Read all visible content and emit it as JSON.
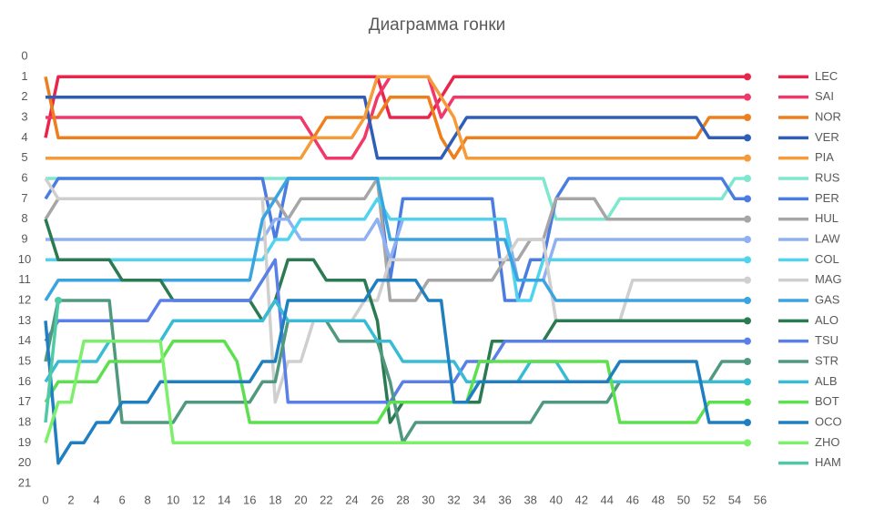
{
  "chart_data": {
    "type": "line",
    "title": "Диаграмма гонки",
    "x": [
      0,
      1,
      2,
      3,
      4,
      5,
      6,
      7,
      8,
      9,
      10,
      11,
      12,
      13,
      14,
      15,
      16,
      17,
      18,
      19,
      20,
      21,
      22,
      23,
      24,
      25,
      26,
      27,
      28,
      29,
      30,
      31,
      32,
      33,
      34,
      35,
      36,
      37,
      38,
      39,
      40,
      41,
      42,
      43,
      44,
      45,
      46,
      47,
      48,
      49,
      50,
      51,
      52,
      53,
      54,
      55
    ],
    "xlim": [
      0,
      56
    ],
    "xticks": [
      0,
      2,
      4,
      6,
      8,
      10,
      12,
      14,
      16,
      18,
      20,
      22,
      24,
      26,
      28,
      30,
      32,
      34,
      36,
      38,
      40,
      42,
      44,
      46,
      48,
      50,
      52,
      54,
      56
    ],
    "ylim": [
      21,
      0
    ],
    "yticks": [
      0,
      1,
      2,
      3,
      4,
      5,
      6,
      7,
      8,
      9,
      10,
      11,
      12,
      13,
      14,
      15,
      16,
      17,
      18,
      19,
      20,
      21
    ],
    "series": [
      {
        "name": "LEC",
        "color": "#e8264b",
        "values": [
          4,
          1,
          1,
          1,
          1,
          1,
          1,
          1,
          1,
          1,
          1,
          1,
          1,
          1,
          1,
          1,
          1,
          1,
          1,
          1,
          1,
          1,
          1,
          1,
          1,
          1,
          1,
          3,
          3,
          3,
          3,
          2,
          1,
          1,
          1,
          1,
          1,
          1,
          1,
          1,
          1,
          1,
          1,
          1,
          1,
          1,
          1,
          1,
          1,
          1,
          1,
          1,
          1,
          1,
          1,
          1
        ]
      },
      {
        "name": "SAI",
        "color": "#f0386a",
        "values": [
          3,
          3,
          3,
          3,
          3,
          3,
          3,
          3,
          3,
          3,
          3,
          3,
          3,
          3,
          3,
          3,
          3,
          3,
          3,
          3,
          3,
          4,
          5,
          5,
          5,
          4,
          2,
          1,
          1,
          1,
          1,
          3,
          2,
          2,
          2,
          2,
          2,
          2,
          2,
          2,
          2,
          2,
          2,
          2,
          2,
          2,
          2,
          2,
          2,
          2,
          2,
          2,
          2,
          2,
          2,
          2
        ]
      },
      {
        "name": "NOR",
        "color": "#ee7f1d",
        "values": [
          1,
          4,
          4,
          4,
          4,
          4,
          4,
          4,
          4,
          4,
          4,
          4,
          4,
          4,
          4,
          4,
          4,
          4,
          4,
          4,
          4,
          4,
          3,
          3,
          3,
          3,
          3,
          2,
          2,
          2,
          2,
          4,
          5,
          4,
          4,
          4,
          4,
          4,
          4,
          4,
          4,
          4,
          4,
          4,
          4,
          4,
          4,
          4,
          4,
          4,
          4,
          4,
          3,
          3,
          3,
          3
        ]
      },
      {
        "name": "VER",
        "color": "#2f5eb8",
        "values": [
          2,
          2,
          2,
          2,
          2,
          2,
          2,
          2,
          2,
          2,
          2,
          2,
          2,
          2,
          2,
          2,
          2,
          2,
          2,
          2,
          2,
          2,
          2,
          2,
          2,
          2,
          5,
          5,
          5,
          5,
          5,
          5,
          4,
          3,
          3,
          3,
          3,
          3,
          3,
          3,
          3,
          3,
          3,
          3,
          3,
          3,
          3,
          3,
          3,
          3,
          3,
          3,
          4,
          4,
          4,
          4
        ]
      },
      {
        "name": "PIA",
        "color": "#f59b3a",
        "values": [
          5,
          5,
          5,
          5,
          5,
          5,
          5,
          5,
          5,
          5,
          5,
          5,
          5,
          5,
          5,
          5,
          5,
          5,
          5,
          5,
          5,
          4,
          4,
          4,
          4,
          3,
          1,
          1,
          1,
          1,
          1,
          2,
          3,
          5,
          5,
          5,
          5,
          5,
          5,
          5,
          5,
          5,
          5,
          5,
          5,
          5,
          5,
          5,
          5,
          5,
          5,
          5,
          5,
          5,
          5,
          5
        ]
      },
      {
        "name": "RUS",
        "color": "#7de8cf",
        "values": [
          6,
          6,
          6,
          6,
          6,
          6,
          6,
          6,
          6,
          6,
          6,
          6,
          6,
          6,
          6,
          6,
          6,
          6,
          6,
          6,
          6,
          6,
          6,
          6,
          6,
          6,
          6,
          6,
          6,
          6,
          6,
          6,
          6,
          6,
          6,
          6,
          6,
          6,
          6,
          6,
          8,
          8,
          8,
          8,
          8,
          7,
          7,
          7,
          7,
          7,
          7,
          7,
          7,
          7,
          6,
          6
        ]
      },
      {
        "name": "PER",
        "color": "#4b7de0",
        "values": [
          7,
          6,
          6,
          6,
          6,
          6,
          6,
          6,
          6,
          6,
          6,
          6,
          6,
          6,
          6,
          6,
          6,
          6,
          9,
          6,
          6,
          6,
          6,
          6,
          6,
          6,
          6,
          11,
          7,
          7,
          7,
          7,
          7,
          7,
          7,
          7,
          12,
          12,
          10,
          10,
          7,
          6,
          6,
          6,
          6,
          6,
          6,
          6,
          6,
          6,
          6,
          6,
          6,
          6,
          7,
          7
        ]
      },
      {
        "name": "HUL",
        "color": "#a6a6a6",
        "values": [
          8,
          7,
          7,
          7,
          7,
          7,
          7,
          7,
          7,
          7,
          7,
          7,
          7,
          7,
          7,
          7,
          7,
          7,
          7,
          8,
          7,
          7,
          7,
          7,
          7,
          7,
          6,
          12,
          12,
          12,
          11,
          11,
          11,
          11,
          11,
          11,
          10,
          10,
          9,
          9,
          7,
          7,
          7,
          7,
          8,
          8,
          8,
          8,
          8,
          8,
          8,
          8,
          8,
          8,
          8,
          8
        ]
      },
      {
        "name": "LAW",
        "color": "#8fb0f2",
        "values": [
          9,
          9,
          9,
          9,
          9,
          9,
          9,
          9,
          9,
          9,
          9,
          9,
          9,
          9,
          9,
          9,
          9,
          9,
          8,
          8,
          9,
          9,
          9,
          9,
          9,
          9,
          8,
          10,
          8,
          8,
          8,
          8,
          8,
          8,
          8,
          8,
          8,
          11,
          11,
          11,
          9,
          9,
          9,
          9,
          9,
          9,
          9,
          9,
          9,
          9,
          9,
          9,
          9,
          9,
          9,
          9
        ]
      },
      {
        "name": "COL",
        "color": "#4fd3ef",
        "values": [
          10,
          10,
          10,
          10,
          10,
          10,
          10,
          10,
          10,
          10,
          10,
          10,
          10,
          10,
          10,
          10,
          10,
          10,
          9,
          9,
          8,
          8,
          8,
          8,
          8,
          8,
          7,
          8,
          8,
          8,
          8,
          8,
          8,
          8,
          8,
          8,
          8,
          12,
          12,
          10,
          10,
          10,
          10,
          10,
          10,
          10,
          10,
          10,
          10,
          10,
          10,
          10,
          10,
          10,
          10,
          10
        ]
      },
      {
        "name": "MAG",
        "color": "#cfcfcf",
        "values": [
          6,
          7,
          7,
          7,
          7,
          7,
          7,
          7,
          7,
          7,
          7,
          7,
          7,
          7,
          7,
          7,
          7,
          7,
          17,
          15,
          15,
          13,
          13,
          13,
          13,
          12,
          12,
          10,
          10,
          10,
          10,
          10,
          10,
          10,
          10,
          10,
          10,
          9,
          9,
          9,
          13,
          13,
          13,
          13,
          13,
          13,
          11,
          11,
          11,
          11,
          11,
          11,
          11,
          11,
          11,
          11
        ]
      },
      {
        "name": "GAS",
        "color": "#3aa4e0",
        "values": [
          12,
          11,
          11,
          11,
          11,
          11,
          11,
          11,
          11,
          11,
          11,
          11,
          11,
          11,
          11,
          11,
          11,
          8,
          7,
          6,
          6,
          6,
          6,
          6,
          6,
          6,
          6,
          9,
          9,
          9,
          9,
          9,
          9,
          9,
          9,
          9,
          9,
          11,
          11,
          11,
          12,
          12,
          12,
          12,
          12,
          12,
          12,
          12,
          12,
          12,
          12,
          12,
          12,
          12,
          12,
          12
        ]
      },
      {
        "name": "ALO",
        "color": "#2a7a52",
        "values": [
          8,
          10,
          10,
          10,
          10,
          10,
          11,
          11,
          11,
          11,
          12,
          12,
          12,
          12,
          12,
          12,
          12,
          13,
          12,
          10,
          10,
          10,
          11,
          11,
          11,
          11,
          13,
          18,
          17,
          17,
          17,
          17,
          17,
          17,
          17,
          14,
          14,
          14,
          14,
          14,
          13,
          13,
          13,
          13,
          13,
          13,
          13,
          13,
          13,
          13,
          13,
          13,
          13,
          13,
          13,
          13
        ]
      },
      {
        "name": "TSU",
        "color": "#5a7fe8",
        "values": [
          14,
          13,
          13,
          13,
          13,
          13,
          13,
          13,
          13,
          12,
          12,
          12,
          12,
          12,
          12,
          12,
          12,
          11,
          10,
          17,
          17,
          17,
          17,
          17,
          17,
          17,
          17,
          17,
          16,
          16,
          16,
          16,
          16,
          15,
          15,
          15,
          14,
          14,
          14,
          14,
          14,
          14,
          14,
          14,
          14,
          14,
          14,
          14,
          14,
          14,
          14,
          14,
          14,
          14,
          14,
          14
        ]
      },
      {
        "name": "STR",
        "color": "#4f9a7e",
        "values": [
          15,
          12,
          12,
          12,
          12,
          12,
          18,
          18,
          18,
          18,
          18,
          17,
          17,
          17,
          17,
          17,
          17,
          16,
          16,
          13,
          13,
          13,
          13,
          14,
          14,
          14,
          14,
          16,
          19,
          18,
          18,
          18,
          18,
          18,
          18,
          18,
          18,
          18,
          18,
          17,
          17,
          17,
          17,
          17,
          17,
          16,
          16,
          16,
          16,
          16,
          16,
          16,
          16,
          15,
          15,
          15
        ]
      },
      {
        "name": "ALB",
        "color": "#38bcd6",
        "values": [
          16,
          15,
          15,
          15,
          15,
          14,
          14,
          14,
          14,
          14,
          13,
          13,
          13,
          13,
          13,
          13,
          13,
          13,
          12,
          13,
          13,
          13,
          13,
          13,
          13,
          13,
          14,
          14,
          15,
          15,
          15,
          15,
          15,
          16,
          16,
          16,
          16,
          16,
          15,
          15,
          15,
          16,
          16,
          16,
          16,
          16,
          16,
          16,
          16,
          16,
          16,
          16,
          16,
          16,
          16,
          16
        ]
      },
      {
        "name": "BOT",
        "color": "#5ce04f",
        "values": [
          17,
          16,
          16,
          16,
          16,
          15,
          15,
          15,
          15,
          15,
          14,
          14,
          14,
          14,
          14,
          15,
          18,
          18,
          18,
          18,
          18,
          18,
          18,
          18,
          18,
          18,
          18,
          17,
          17,
          17,
          17,
          17,
          17,
          17,
          15,
          15,
          15,
          15,
          15,
          15,
          15,
          15,
          15,
          15,
          15,
          18,
          18,
          18,
          18,
          18,
          18,
          18,
          17,
          17,
          17,
          17
        ]
      },
      {
        "name": "OCO",
        "color": "#1f7fc0",
        "values": [
          13,
          20,
          19,
          19,
          18,
          18,
          17,
          17,
          17,
          16,
          16,
          16,
          16,
          16,
          16,
          16,
          16,
          15,
          15,
          12,
          12,
          12,
          12,
          12,
          12,
          12,
          11,
          11,
          11,
          11,
          12,
          12,
          17,
          17,
          16,
          16,
          16,
          16,
          16,
          16,
          16,
          16,
          16,
          16,
          16,
          15,
          15,
          15,
          15,
          15,
          15,
          15,
          18,
          18,
          18,
          18
        ]
      },
      {
        "name": "ZHO",
        "color": "#7cf06a",
        "values": [
          19,
          17,
          17,
          14,
          14,
          14,
          14,
          14,
          14,
          14,
          19,
          19,
          19,
          19,
          19,
          19,
          19,
          19,
          19,
          19,
          19,
          19,
          19,
          19,
          19,
          19,
          19,
          19,
          19,
          19,
          19,
          19,
          19,
          19,
          19,
          19,
          19,
          19,
          19,
          19,
          19,
          19,
          19,
          19,
          19,
          19,
          19,
          19,
          19,
          19,
          19,
          19,
          19,
          19,
          19,
          19
        ]
      },
      {
        "name": "HAM",
        "color": "#4fc9a6",
        "values": [
          18,
          12,
          null,
          null,
          null,
          null,
          null,
          null,
          null,
          null,
          null,
          null,
          null,
          null,
          null,
          null,
          null,
          null,
          null,
          null,
          null,
          null,
          null,
          null,
          null,
          null,
          null,
          null,
          null,
          null,
          null,
          null,
          null,
          null,
          null,
          null,
          null,
          null,
          null,
          null,
          null,
          null,
          null,
          null,
          null,
          null,
          null,
          null,
          null,
          null,
          null,
          null,
          null,
          null,
          null,
          null
        ]
      }
    ]
  }
}
